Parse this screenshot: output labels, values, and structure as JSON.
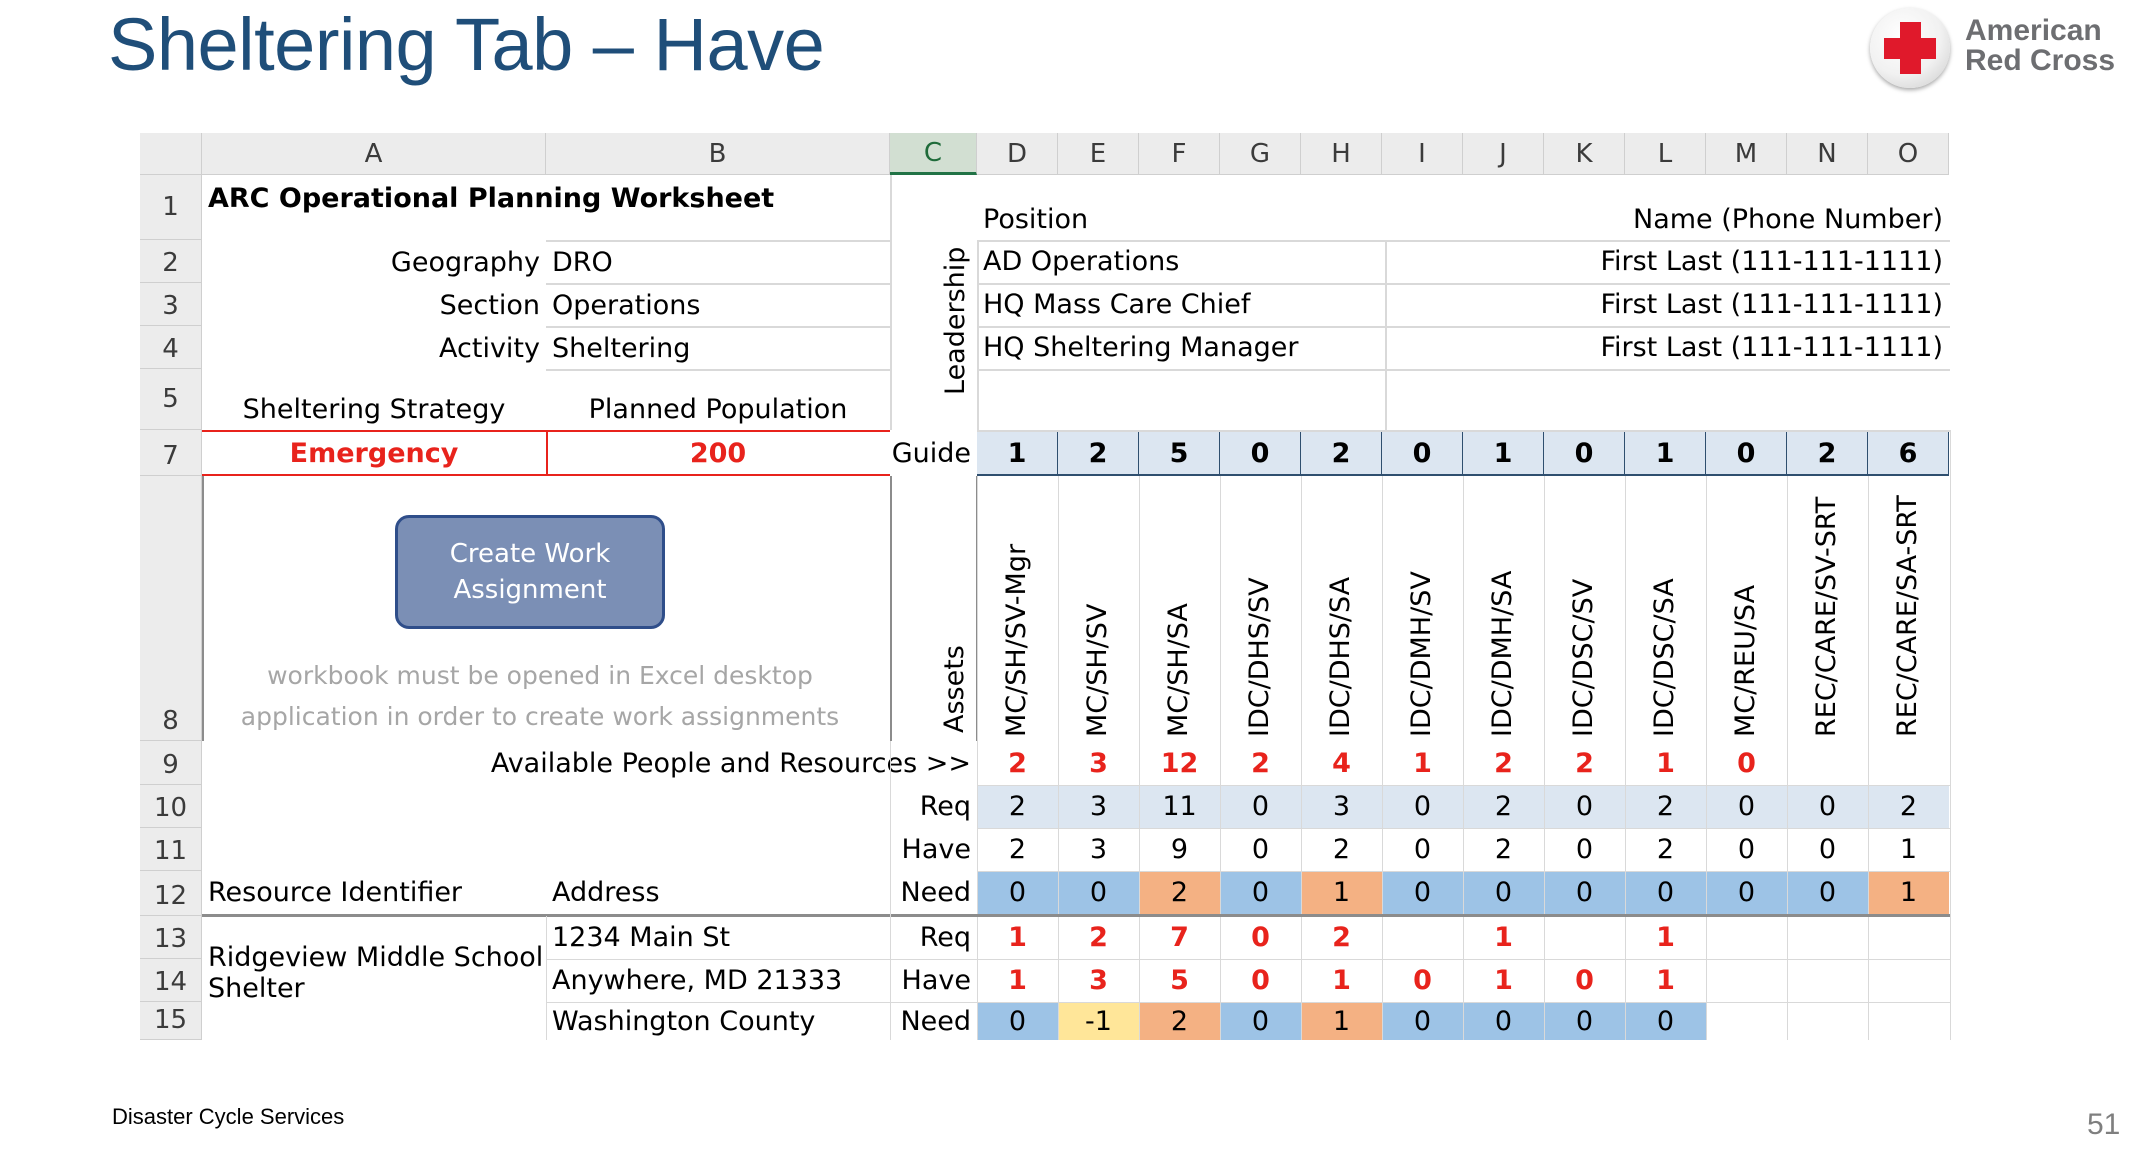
{
  "slide": {
    "title": "Sheltering Tab – Have",
    "footer": "Disaster Cycle Services",
    "page_number": "51",
    "logo_line1": "American",
    "logo_line2": "Red Cross"
  },
  "columns": [
    "A",
    "B",
    "C",
    "D",
    "E",
    "F",
    "G",
    "H",
    "I",
    "J",
    "K",
    "L",
    "M",
    "N",
    "O"
  ],
  "rows": [
    "1",
    "2",
    "3",
    "4",
    "5",
    "7",
    "8",
    "9",
    "10",
    "11",
    "12",
    "13",
    "14",
    "15"
  ],
  "worksheet": {
    "title": "ARC Operational Planning Worksheet",
    "geography_label": "Geography",
    "geography_value": "DRO",
    "section_label": "Section",
    "section_value": "Operations",
    "activity_label": "Activity",
    "activity_value": "Sheltering",
    "strategy_label": "Sheltering Strategy",
    "population_label": "Planned Population",
    "strategy_value": "Emergency",
    "population_value": "200"
  },
  "leadership": {
    "label": "Leadership",
    "position_header": "Position",
    "name_header": "Name (Phone Number)",
    "rows": [
      {
        "position": "AD Operations",
        "name": "First Last (111-111-1111)"
      },
      {
        "position": "HQ Mass Care Chief",
        "name": "First Last (111-111-1111)"
      },
      {
        "position": "HQ Sheltering Manager",
        "name": "First Last (111-111-1111)"
      }
    ]
  },
  "button": {
    "line1": "Create Work",
    "line2": "Assignment"
  },
  "note": {
    "line1": "workbook must be opened in Excel desktop",
    "line2": "application in order to create work assignments"
  },
  "guide_label": "Guide",
  "guide_values": [
    "1",
    "2",
    "5",
    "0",
    "2",
    "0",
    "1",
    "0",
    "1",
    "0",
    "2",
    "6"
  ],
  "assets_label": "Assets",
  "positions": [
    "MC/SH/SV-Mgr",
    "MC/SH/SV",
    "MC/SH/SA",
    "IDC/DHS/SV",
    "IDC/DHS/SA",
    "IDC/DMH/SV",
    "IDC/DMH/SA",
    "IDC/DSC/SV",
    "IDC/DSC/SA",
    "MC/REU/SA",
    "REC/CARE/SV-SRT",
    "REC/CARE/SA-SRT"
  ],
  "available_label": "Available People and Resources >>",
  "available_values": [
    "2",
    "3",
    "12",
    "2",
    "4",
    "1",
    "2",
    "2",
    "1",
    "0",
    "",
    ""
  ],
  "summary": {
    "req_label": "Req",
    "have_label": "Have",
    "need_label": "Need",
    "req": [
      "2",
      "3",
      "11",
      "0",
      "3",
      "0",
      "2",
      "0",
      "2",
      "0",
      "0",
      "2"
    ],
    "have": [
      "2",
      "3",
      "9",
      "0",
      "2",
      "0",
      "2",
      "0",
      "2",
      "0",
      "0",
      "1"
    ],
    "need": [
      "0",
      "0",
      "2",
      "0",
      "1",
      "0",
      "0",
      "0",
      "0",
      "0",
      "0",
      "1"
    ]
  },
  "resource_header": {
    "identifier": "Resource Identifier",
    "address": "Address"
  },
  "resource": {
    "name_line1": "Ridgeview Middle School",
    "name_line2": "Shelter",
    "address_line1": "1234 Main St",
    "address_line2": "Anywhere, MD 21333",
    "address_line3": "Washington County",
    "req": [
      "1",
      "2",
      "7",
      "0",
      "2",
      "",
      "1",
      "",
      "1",
      "",
      "",
      ""
    ],
    "have": [
      "1",
      "3",
      "5",
      "0",
      "1",
      "0",
      "1",
      "0",
      "1",
      "",
      "",
      ""
    ],
    "need": [
      "0",
      "-1",
      "2",
      "0",
      "1",
      "0",
      "0",
      "0",
      "0",
      "",
      "",
      ""
    ]
  },
  "colors": {
    "title_blue": "#1f4e79",
    "logo_red": "#e0192b",
    "accent_red": "#e8231c",
    "need_blue": "#9dc3e6",
    "need_orange": "#f4b183",
    "need_yellow": "#ffe699",
    "summary_lightblue": "#dce6f1"
  }
}
